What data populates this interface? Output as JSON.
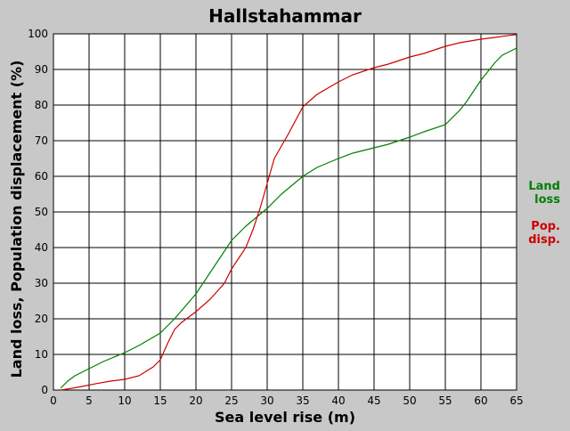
{
  "chart_data": {
    "type": "line",
    "title": "Hallstahammar",
    "xlabel": "Sea level rise (m)",
    "ylabel": "Land loss, Population displacement (%)",
    "xlim": [
      0,
      65
    ],
    "ylim": [
      0,
      100
    ],
    "xticks": [
      0,
      5,
      10,
      15,
      20,
      25,
      30,
      35,
      40,
      45,
      50,
      55,
      60,
      65
    ],
    "yticks": [
      0,
      10,
      20,
      30,
      40,
      50,
      60,
      70,
      80,
      90,
      100
    ],
    "grid": true,
    "legend_position": "right",
    "background": "#c8c8c8",
    "plot_background": "#ffffff",
    "series": [
      {
        "name": "Land loss",
        "legend_lines": [
          "Land",
          "loss"
        ],
        "color": "#008000",
        "x": [
          1,
          2,
          3,
          5,
          7,
          10,
          12,
          15,
          17,
          20,
          22,
          24,
          25,
          27,
          30,
          32,
          35,
          37,
          40,
          42,
          45,
          47,
          50,
          52,
          55,
          57,
          58,
          60,
          62,
          63,
          65
        ],
        "y": [
          0.5,
          2.5,
          4,
          6,
          8,
          10.5,
          12.5,
          16,
          20,
          27,
          33,
          39,
          42,
          46,
          51,
          55,
          60,
          62.5,
          65,
          66.5,
          68,
          69,
          71,
          72.5,
          74.5,
          78.5,
          81,
          87,
          92,
          94,
          96
        ]
      },
      {
        "name": "Pop. disp.",
        "legend_lines": [
          "Pop.",
          "disp."
        ],
        "color": "#cc0000",
        "x": [
          1,
          2,
          4,
          6,
          8,
          10,
          12,
          14,
          15,
          16,
          17,
          18,
          20,
          22,
          24,
          25,
          26,
          27,
          28,
          29,
          30,
          31,
          33,
          35,
          37,
          40,
          42,
          45,
          47,
          50,
          52,
          55,
          57,
          60,
          62,
          63,
          65
        ],
        "y": [
          0,
          0.3,
          1,
          1.8,
          2.5,
          3,
          4,
          6.5,
          8.5,
          13,
          17,
          19,
          22,
          25.5,
          30,
          34,
          37,
          40,
          45,
          51,
          58,
          65,
          72,
          79.5,
          83,
          86.5,
          88.5,
          90.5,
          91.5,
          93.5,
          94.5,
          96.5,
          97.5,
          98.5,
          99,
          99.3,
          99.8
        ]
      }
    ]
  }
}
